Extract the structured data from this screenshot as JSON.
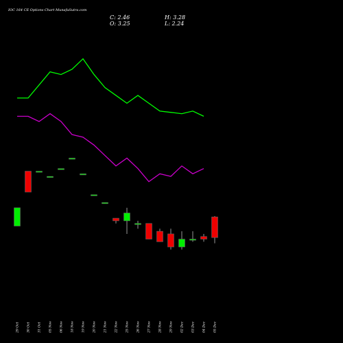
{
  "chart_data": {
    "type": "candlestick",
    "title": "IOC 164 CE Options Chart MunafaSutra.com",
    "ohlc_readout": {
      "close_label": "C: 2.46",
      "open_label": "O: 3.25",
      "high_label": "H: 3.28",
      "low_label": "L: 2.24"
    },
    "background": "#000000",
    "colors": {
      "up": "#00ee00",
      "down": "#ee0000",
      "line_upper": "#00ff00",
      "line_lower": "#cc00cc"
    },
    "categories": [
      "29 Oct",
      "30 Oct",
      "31 Oct",
      "05 Nov",
      "06 Nov",
      "18 Nov",
      "19 Nov",
      "20 Nov",
      "21 Nov",
      "22 Nov",
      "25 Nov",
      "26 Nov",
      "27 Nov",
      "28 Nov",
      "29 Nov",
      "02 Dec",
      "03 Dec",
      "04 Dec",
      "05 Dec"
    ],
    "candles": [
      {
        "o": 2.9,
        "h": 3.6,
        "l": 2.9,
        "c": 3.6
      },
      {
        "o": 5.0,
        "h": 5.0,
        "l": 4.2,
        "c": 4.2
      },
      {
        "o": 5.0,
        "h": 5.0,
        "l": 5.0,
        "c": 5.0
      },
      {
        "o": 4.8,
        "h": 4.8,
        "l": 4.8,
        "c": 4.8
      },
      {
        "o": 5.1,
        "h": 5.1,
        "l": 5.1,
        "c": 5.1
      },
      {
        "o": 5.5,
        "h": 5.5,
        "l": 5.5,
        "c": 5.5
      },
      {
        "o": 4.9,
        "h": 4.9,
        "l": 4.9,
        "c": 4.9
      },
      {
        "o": 4.1,
        "h": 4.1,
        "l": 4.1,
        "c": 4.1
      },
      {
        "o": 3.8,
        "h": 3.8,
        "l": 3.8,
        "c": 3.8
      },
      {
        "o": 3.2,
        "h": 3.2,
        "l": 3.0,
        "c": 3.1
      },
      {
        "o": 3.1,
        "h": 3.6,
        "l": 2.6,
        "c": 3.4
      },
      {
        "o": 3.0,
        "h": 3.1,
        "l": 2.8,
        "c": 3.0
      },
      {
        "o": 3.0,
        "h": 3.0,
        "l": 2.4,
        "c": 2.4
      },
      {
        "o": 2.7,
        "h": 2.8,
        "l": 2.3,
        "c": 2.3
      },
      {
        "o": 2.6,
        "h": 2.8,
        "l": 2.0,
        "c": 2.1
      },
      {
        "o": 2.1,
        "h": 2.7,
        "l": 2.0,
        "c": 2.4
      },
      {
        "o": 2.4,
        "h": 2.7,
        "l": 2.3,
        "c": 2.4
      },
      {
        "o": 2.5,
        "h": 2.6,
        "l": 2.3,
        "c": 2.4
      },
      {
        "o": 3.25,
        "h": 3.28,
        "l": 2.24,
        "c": 2.46
      }
    ],
    "line_series": [
      {
        "values": [
          7.8,
          7.8,
          8.3,
          8.8,
          8.7,
          8.9,
          9.3,
          8.7,
          8.2,
          7.9,
          7.6,
          7.9,
          7.6,
          7.3,
          7.25,
          7.2,
          7.3,
          7.1,
          null
        ]
      },
      {
        "values": [
          7.1,
          7.1,
          6.9,
          7.2,
          6.9,
          6.4,
          6.3,
          6.0,
          5.6,
          5.2,
          5.5,
          5.1,
          4.6,
          4.9,
          4.8,
          5.2,
          4.9,
          5.1,
          null
        ]
      }
    ],
    "ylim": [
      0,
      10.5
    ]
  }
}
